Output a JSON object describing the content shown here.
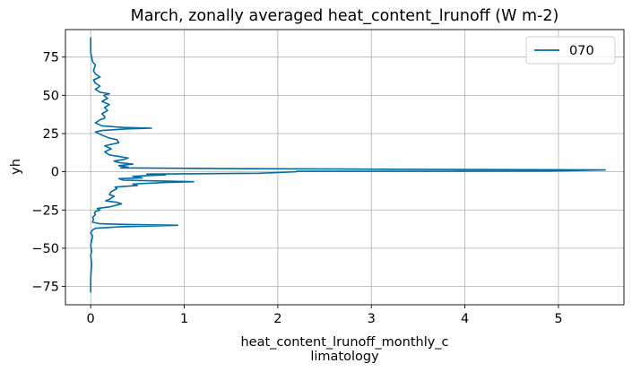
{
  "chart_data": {
    "type": "line",
    "title": "March, zonally averaged heat_content_lrunoff (W m-2)",
    "xlabel_lines": [
      "heat_content_lrunoff_monthly_c",
      "limatology"
    ],
    "ylabel": "yh",
    "xlim": [
      -0.27,
      5.7
    ],
    "ylim": [
      -87,
      93
    ],
    "xticks": [
      0,
      1,
      2,
      3,
      4,
      5
    ],
    "yticks": [
      -75,
      -50,
      -25,
      0,
      25,
      50,
      75
    ],
    "xtick_labels": [
      "0",
      "1",
      "2",
      "3",
      "4",
      "5"
    ],
    "ytick_labels": [
      "−75",
      "−50",
      "−25",
      "0",
      "25",
      "50",
      "75"
    ],
    "grid": true,
    "legend_position": "top-right",
    "series": [
      {
        "name": "070",
        "color": "#006ba4",
        "points": [
          [
            0.0,
            -79
          ],
          [
            0.0,
            -70
          ],
          [
            0.01,
            -60
          ],
          [
            0.0,
            -55
          ],
          [
            0.01,
            -52
          ],
          [
            0.0,
            -48
          ],
          [
            0.01,
            -45
          ],
          [
            0.02,
            -42
          ],
          [
            0.0,
            -40
          ],
          [
            0.02,
            -38
          ],
          [
            0.05,
            -37
          ],
          [
            0.3,
            -36
          ],
          [
            0.93,
            -35
          ],
          [
            0.4,
            -34.5
          ],
          [
            0.1,
            -34
          ],
          [
            0.02,
            -33
          ],
          [
            0.03,
            -31
          ],
          [
            0.02,
            -30
          ],
          [
            0.05,
            -28
          ],
          [
            0.04,
            -27
          ],
          [
            0.05,
            -26
          ],
          [
            0.1,
            -25
          ],
          [
            0.07,
            -24
          ],
          [
            0.2,
            -23
          ],
          [
            0.33,
            -21
          ],
          [
            0.28,
            -20
          ],
          [
            0.16,
            -19
          ],
          [
            0.2,
            -18
          ],
          [
            0.25,
            -16
          ],
          [
            0.2,
            -15
          ],
          [
            0.22,
            -13
          ],
          [
            0.25,
            -12
          ],
          [
            0.28,
            -11
          ],
          [
            0.26,
            -10
          ],
          [
            0.5,
            -9
          ],
          [
            0.45,
            -8
          ],
          [
            0.8,
            -7
          ],
          [
            1.1,
            -6.5
          ],
          [
            0.7,
            -6
          ],
          [
            0.35,
            -5.5
          ],
          [
            0.3,
            -4.5
          ],
          [
            0.55,
            -4
          ],
          [
            0.45,
            -3
          ],
          [
            0.8,
            -2
          ],
          [
            0.6,
            -1.5
          ],
          [
            1.8,
            -1
          ],
          [
            2.2,
            0
          ],
          [
            2.2,
            0.3
          ],
          [
            4.9,
            0.5
          ],
          [
            5.5,
            1.2
          ],
          [
            3.4,
            1.6
          ],
          [
            1.7,
            2
          ],
          [
            0.32,
            2.5
          ],
          [
            0.4,
            3
          ],
          [
            0.3,
            4
          ],
          [
            0.45,
            5
          ],
          [
            0.3,
            6
          ],
          [
            0.25,
            7
          ],
          [
            0.35,
            8
          ],
          [
            0.4,
            9
          ],
          [
            0.3,
            10
          ],
          [
            0.2,
            11
          ],
          [
            0.15,
            13
          ],
          [
            0.22,
            15
          ],
          [
            0.15,
            17
          ],
          [
            0.3,
            19
          ],
          [
            0.28,
            21
          ],
          [
            0.2,
            22
          ],
          [
            0.12,
            24
          ],
          [
            0.05,
            26
          ],
          [
            0.12,
            27
          ],
          [
            0.38,
            28
          ],
          [
            0.65,
            28.5
          ],
          [
            0.35,
            29
          ],
          [
            0.12,
            30
          ],
          [
            0.05,
            32
          ],
          [
            0.1,
            34
          ],
          [
            0.15,
            35
          ],
          [
            0.15,
            36
          ],
          [
            0.12,
            38
          ],
          [
            0.18,
            40
          ],
          [
            0.15,
            42
          ],
          [
            0.2,
            44
          ],
          [
            0.12,
            46
          ],
          [
            0.18,
            48
          ],
          [
            0.14,
            50
          ],
          [
            0.2,
            51
          ],
          [
            0.1,
            52
          ],
          [
            0.05,
            54
          ],
          [
            0.1,
            56
          ],
          [
            0.05,
            58
          ],
          [
            0.03,
            60
          ],
          [
            0.1,
            62
          ],
          [
            0.05,
            64
          ],
          [
            0.03,
            66
          ],
          [
            0.04,
            68
          ],
          [
            0.05,
            70
          ],
          [
            0.02,
            72
          ],
          [
            0.01,
            75
          ],
          [
            0.0,
            78
          ],
          [
            0.0,
            82
          ],
          [
            0.0,
            86
          ],
          [
            0.0,
            88
          ]
        ]
      }
    ]
  }
}
